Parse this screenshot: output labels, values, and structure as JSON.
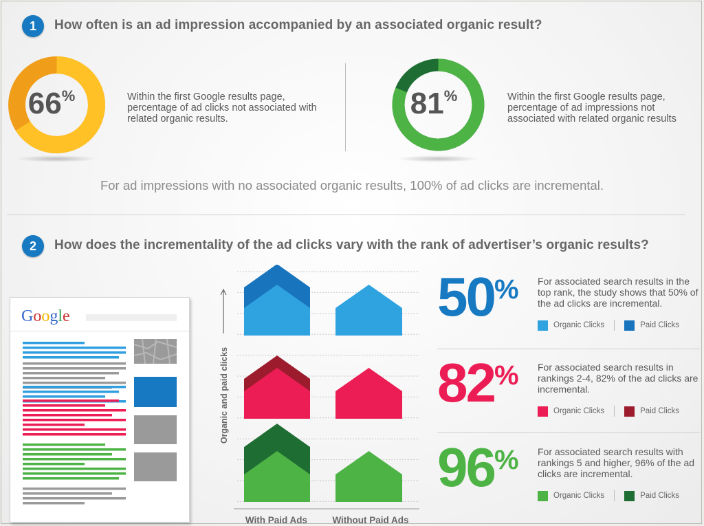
{
  "section1": {
    "number": "1",
    "title": "How often is an ad impression accompanied by an associated organic result?",
    "left": {
      "value": "66",
      "pct_sign": "%",
      "fraction": 0.66,
      "main_color": "#ffc125",
      "rest_color": "#f09d1a",
      "text": "Within the first Google results page, percentage of ad clicks not associated with related organic results."
    },
    "right": {
      "value": "81",
      "pct_sign": "%",
      "fraction": 0.81,
      "main_color": "#4db345",
      "rest_color": "#1e6d33",
      "text": "Within the first Google results page, percentage of ad impressions not associated with related organic results"
    },
    "summary": "For ad impressions with no associated organic results, 100% of ad clicks are incremental."
  },
  "section2": {
    "number": "2",
    "title": "How does the incrementality of the ad clicks vary with the rank of advertiser’s organic results?",
    "mockup": {
      "logo": "Google",
      "logo_colors": [
        "#3366cc",
        "#cc3333",
        "#f2b400",
        "#3366cc",
        "#33a853",
        "#cc3333"
      ],
      "ad_color": "#1779c1",
      "rows_blue": "#2f9edf",
      "rows_red": "#ec1d54",
      "rows_green": "#4db345",
      "rows_gray": "#9a9a9a"
    }
  },
  "chart_data": {
    "type": "area",
    "ylabel": "Organic and paid clicks",
    "categories": [
      "With Paid Ads",
      "Without Paid Ads"
    ],
    "panels": [
      {
        "label": "top rank",
        "percent": "50",
        "pct_sign": "%",
        "color": "#1779c1",
        "description": "For associated search results in the top rank, the study shows that 50% of the ad clicks are incremental.",
        "series": [
          {
            "name": "Organic Clicks",
            "color": "#2ea3e0",
            "values": [
              1,
              1
            ]
          },
          {
            "name": "Paid Clicks",
            "color": "#1874bd",
            "values": [
              1,
              0
            ]
          }
        ]
      },
      {
        "label": "rankings 2-4",
        "percent": "82",
        "pct_sign": "%",
        "color": "#ec1d54",
        "description": "For associated search results in rankings 2-4, 82% of the ad clicks are incremental.",
        "series": [
          {
            "name": "Organic Clicks",
            "color": "#ec1d54",
            "values": [
              1,
              1
            ]
          },
          {
            "name": "Paid Clicks",
            "color": "#9c1c2d",
            "values": [
              0.6,
              0
            ]
          }
        ]
      },
      {
        "label": "rankings 5 and higher",
        "percent": "96",
        "pct_sign": "%",
        "color": "#4db345",
        "description": "For associated search results with rankings 5 and higher, 96% of the ad clicks are incremental.",
        "series": [
          {
            "name": "Organic Clicks",
            "color": "#4db345",
            "values": [
              1,
              1
            ]
          },
          {
            "name": "Paid Clicks",
            "color": "#1e6d33",
            "values": [
              1.33,
              0
            ]
          }
        ]
      }
    ]
  }
}
